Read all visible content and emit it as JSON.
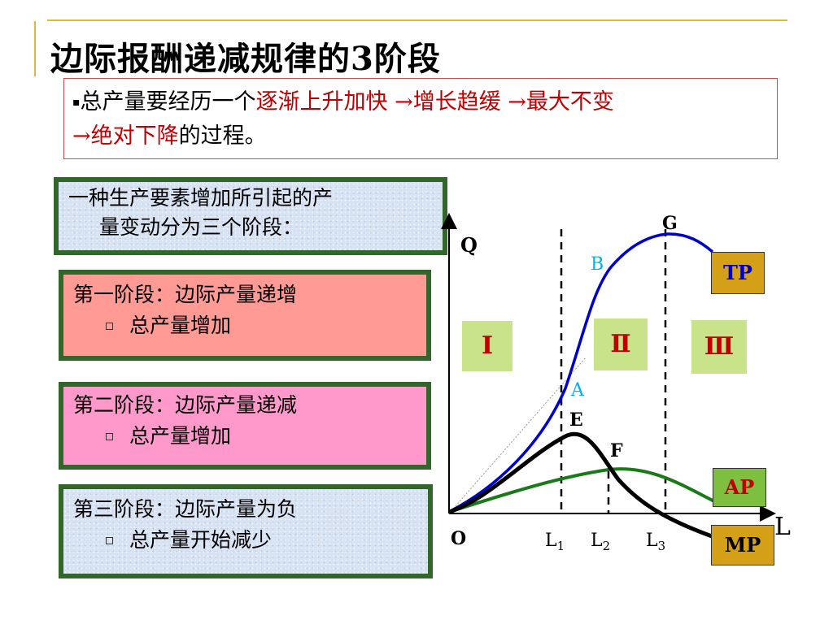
{
  "slide": {
    "title": "边际报酬递减规律的3阶段"
  },
  "summary": {
    "bullet": "▪",
    "line1_prefix": "总产量要经历一个",
    "line1_red": "逐渐上升加快 →增长趋缓 →最大不变",
    "line2_red": "→绝对下降",
    "line2_suffix": "的过程。"
  },
  "intro_box": {
    "line1": "一种生产要素增加所引起的产",
    "line2": "量变动分为三个阶段："
  },
  "stages": [
    {
      "heading": "第一阶段：边际产量递增",
      "detail": "总产量增加"
    },
    {
      "heading": "第二阶段：边际产量递减",
      "detail": "总产量增加"
    },
    {
      "heading": "第三阶段：边际产量为负",
      "detail": "总产量开始减少"
    }
  ],
  "chart": {
    "y_axis": "Q",
    "x_axis": "L",
    "origin": "O",
    "x_ticks": [
      {
        "base": "L",
        "sub": "1"
      },
      {
        "base": "L",
        "sub": "2"
      },
      {
        "base": "L",
        "sub": "3"
      }
    ],
    "points": {
      "A": "A",
      "B": "B",
      "E": "E",
      "F": "F",
      "G": "G"
    },
    "stage_labels": [
      "Ⅰ",
      "Ⅱ",
      "Ⅲ"
    ],
    "curve_labels": {
      "tp": "TP",
      "ap": "AP",
      "mp": "MP"
    },
    "colors": {
      "tp": "#0000cc",
      "ap": "#1a7a1a",
      "mp": "#000000",
      "point_a": "#00b0f0",
      "point_b": "#00b0f0",
      "stage_box": "#c9e38a",
      "stage_text": "#c00000",
      "tp_box": "#d4a017",
      "ap_box": "#7fbf3f",
      "mp_box": "#d4a017",
      "curve_label_tp": "#0000cc",
      "curve_label_ap": "#c00000",
      "curve_label_mp": "#000000"
    }
  }
}
